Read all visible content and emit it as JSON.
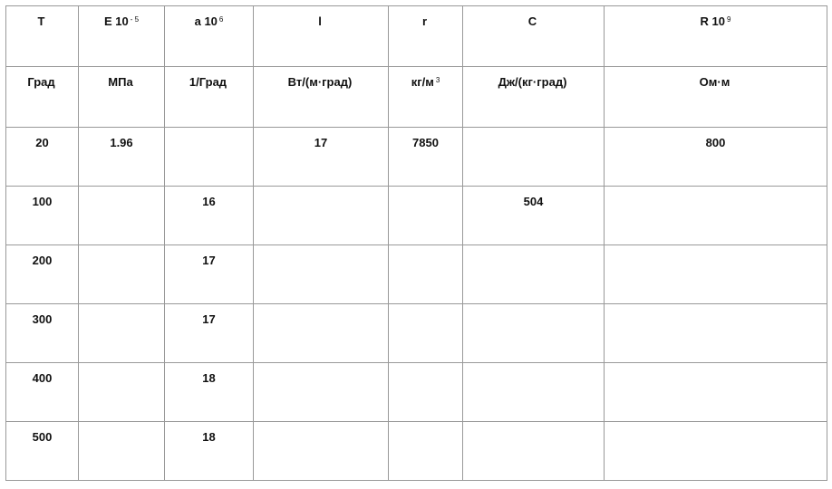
{
  "headers": [
    {
      "symbol": "T",
      "exp": ""
    },
    {
      "symbol": "E 10",
      "exp": "- 5"
    },
    {
      "symbol": "a 10",
      "exp": "6"
    },
    {
      "symbol": "l",
      "exp": ""
    },
    {
      "symbol": "r",
      "exp": ""
    },
    {
      "symbol": "C",
      "exp": ""
    },
    {
      "symbol": "R 10",
      "exp": "9"
    }
  ],
  "units": [
    {
      "text": "Град",
      "exp": ""
    },
    {
      "text": "МПа",
      "exp": ""
    },
    {
      "text": "1/Град",
      "exp": ""
    },
    {
      "text": "Вт/(м·град)",
      "exp": ""
    },
    {
      "text": "кг/м",
      "exp": "3"
    },
    {
      "text": "Дж/(кг·град)",
      "exp": ""
    },
    {
      "text": "Ом·м",
      "exp": ""
    }
  ],
  "rows": [
    [
      "20",
      "1.96",
      "",
      "17",
      "7850",
      "",
      "800"
    ],
    [
      "100",
      "",
      "16",
      "",
      "",
      "504",
      ""
    ],
    [
      "200",
      "",
      "17",
      "",
      "",
      "",
      ""
    ],
    [
      "300",
      "",
      "17",
      "",
      "",
      "",
      ""
    ],
    [
      "400",
      "",
      "18",
      "",
      "",
      "",
      ""
    ],
    [
      "500",
      "",
      "18",
      "",
      "",
      "",
      ""
    ]
  ]
}
